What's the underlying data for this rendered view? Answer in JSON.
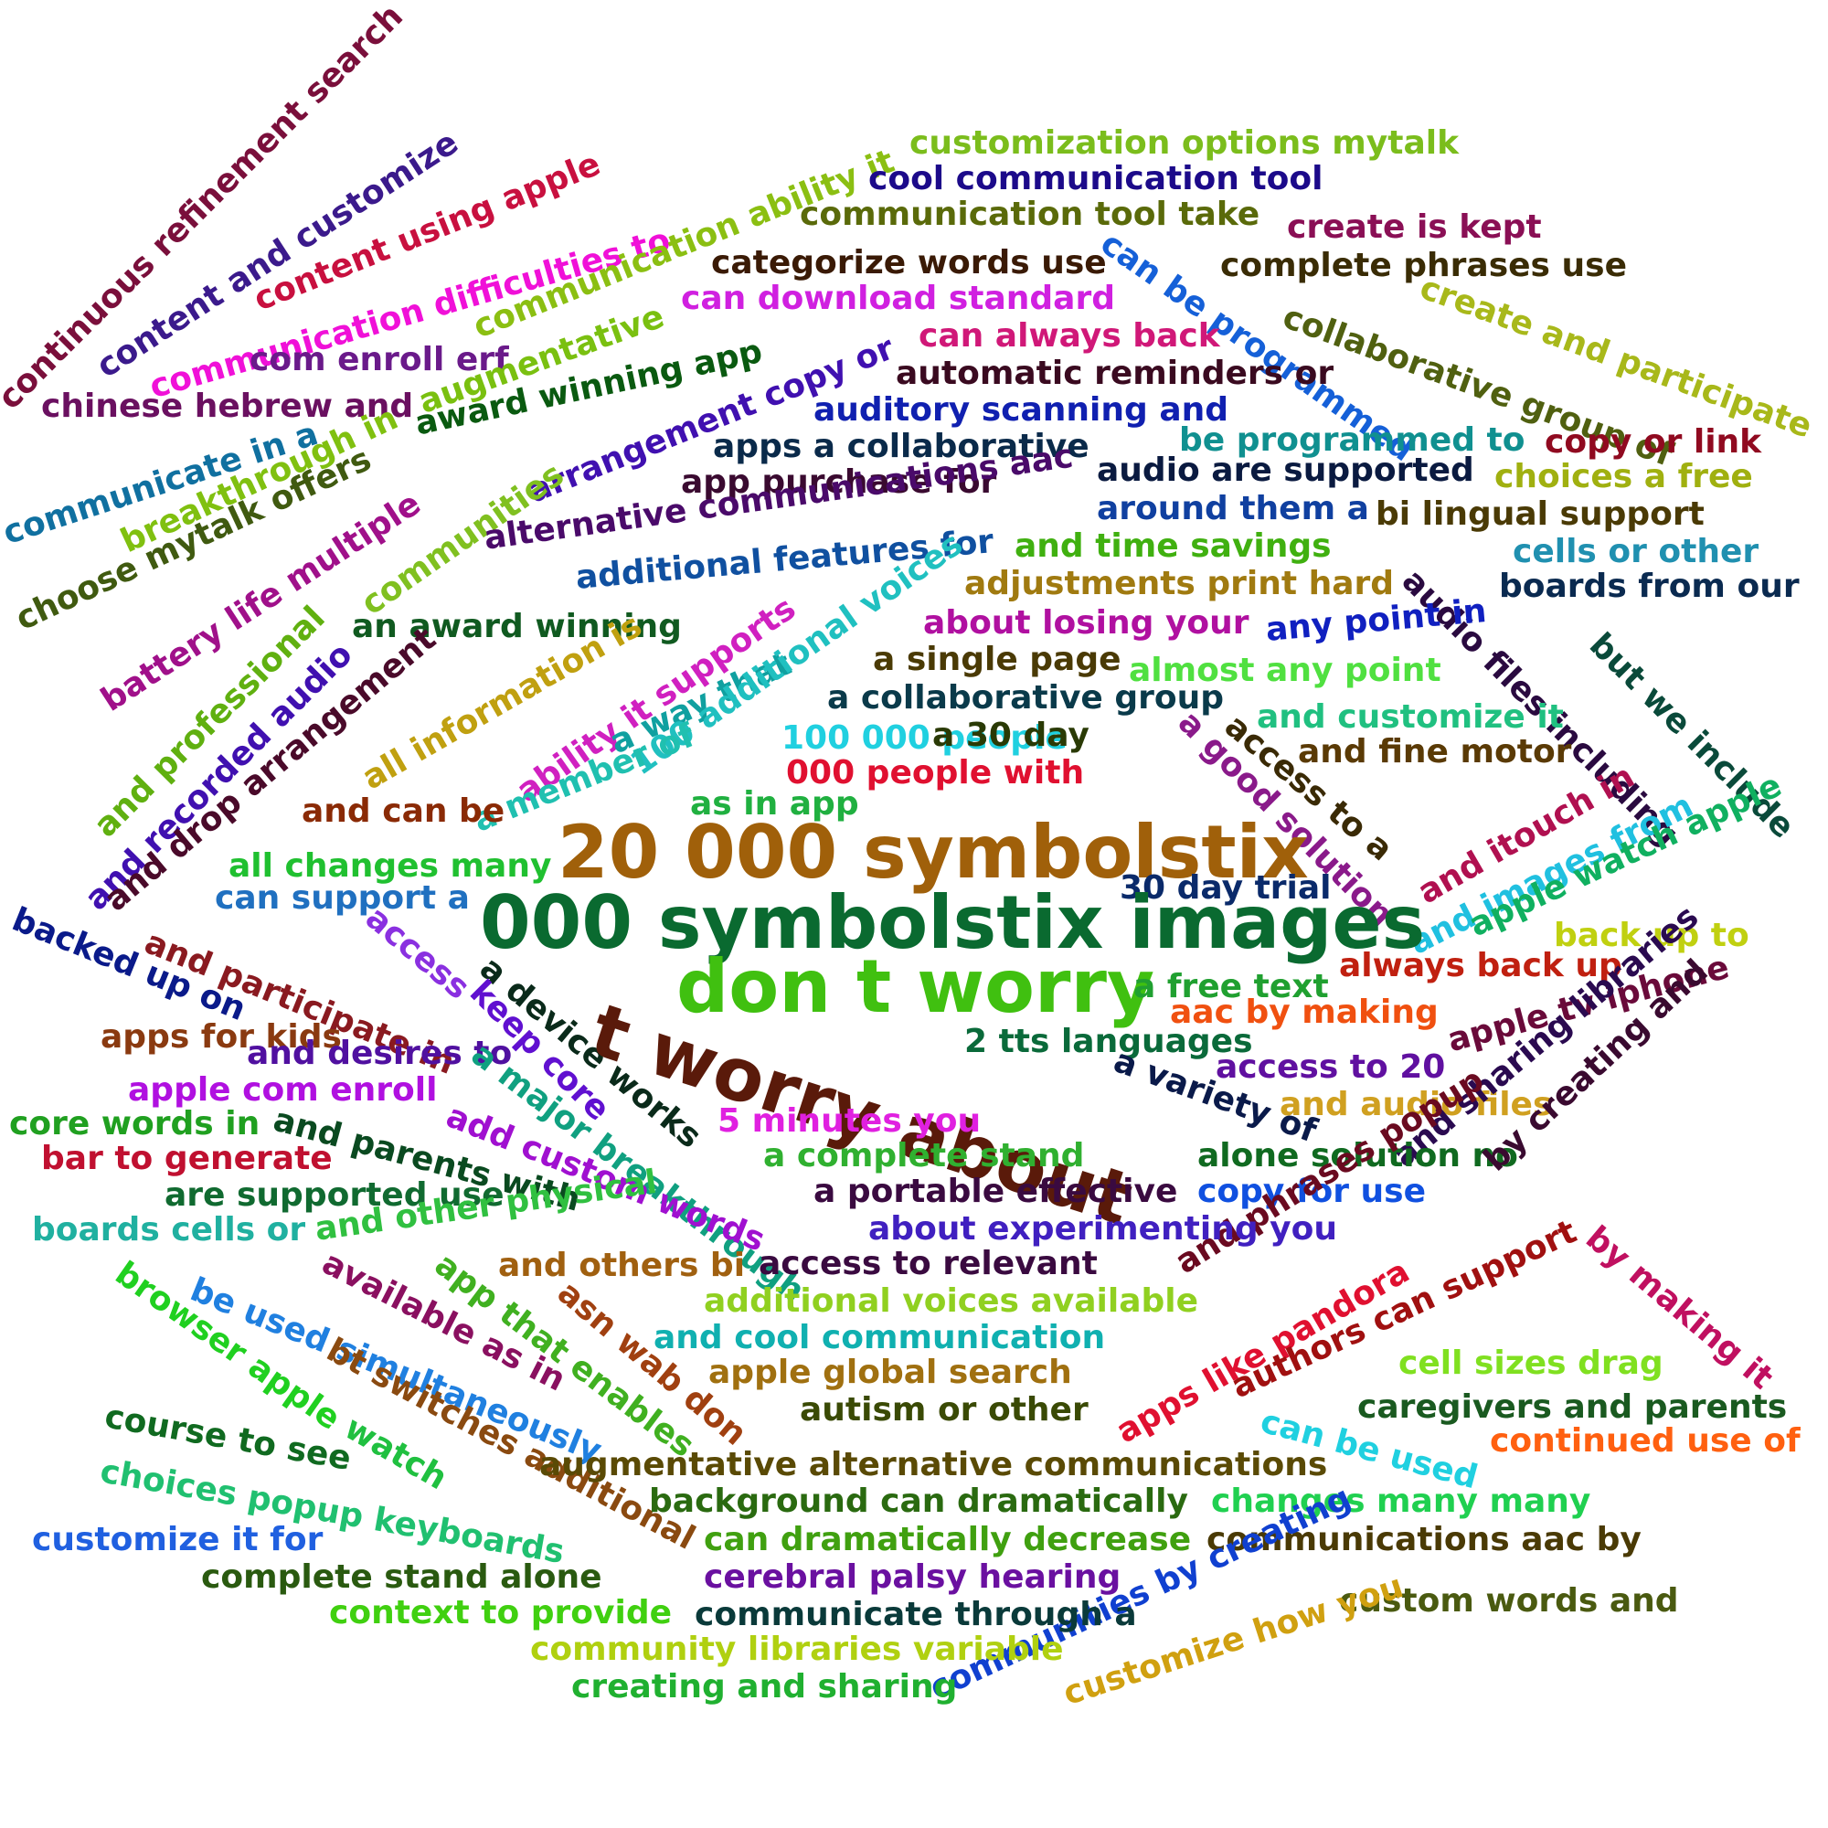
{
  "words": [
    {
      "text": "continuous refinement search",
      "color": "#7a0f3b"
    },
    {
      "text": "content and customize",
      "color": "#3b1a8c"
    },
    {
      "text": "content using apple",
      "color": "#c8103f"
    },
    {
      "text": "communication difficulties to",
      "color": "#f010d8"
    },
    {
      "text": "communication ability it",
      "color": "#8bbf12"
    },
    {
      "text": "customization options mytalk",
      "color": "#7bbd1c"
    },
    {
      "text": "cool communication tool",
      "color": "#1c0a8a"
    },
    {
      "text": "communication tool take",
      "color": "#5a6a0a"
    },
    {
      "text": "create is kept",
      "color": "#8a0f55"
    },
    {
      "text": "categorize words use",
      "color": "#3a1a05"
    },
    {
      "text": "can be programmed",
      "color": "#1560d8"
    },
    {
      "text": "complete phrases use",
      "color": "#3a2c05"
    },
    {
      "text": "create and participate",
      "color": "#a8b81a"
    },
    {
      "text": "collaborative group of",
      "color": "#506010"
    },
    {
      "text": "can download standard",
      "color": "#d020e0"
    },
    {
      "text": "can always back",
      "color": "#d01878"
    },
    {
      "text": "com enroll erf",
      "color": "#6a1a8a"
    },
    {
      "text": "augmentative",
      "color": "#7ac010"
    },
    {
      "text": "chinese hebrew and",
      "color": "#6a1060"
    },
    {
      "text": "award winning app",
      "color": "#0a5a10"
    },
    {
      "text": "arrangement copy or",
      "color": "#4010b0"
    },
    {
      "text": "automatic reminders or",
      "color": "#3a0a20"
    },
    {
      "text": "auditory scanning and",
      "color": "#1020b0"
    },
    {
      "text": "be programmed to",
      "color": "#109090"
    },
    {
      "text": "copy or link",
      "color": "#900a20"
    },
    {
      "text": "communicate in a",
      "color": "#1070a0"
    },
    {
      "text": "breakthrough in",
      "color": "#80c010"
    },
    {
      "text": "apps a collaborative",
      "color": "#0a2a4a"
    },
    {
      "text": "app purchase for",
      "color": "#3a0a30"
    },
    {
      "text": "audio are supported",
      "color": "#0a1a40"
    },
    {
      "text": "choices a free",
      "color": "#a0b010"
    },
    {
      "text": "choose mytalk offers",
      "color": "#405a10"
    },
    {
      "text": "communities",
      "color": "#80c020"
    },
    {
      "text": "battery life multiple",
      "color": "#a0108a"
    },
    {
      "text": "alternative communications aac",
      "color": "#4a0a6a"
    },
    {
      "text": "around them a",
      "color": "#1040a0"
    },
    {
      "text": "bi lingual support",
      "color": "#4a3a05"
    },
    {
      "text": "audio files including",
      "color": "#2a0a40"
    },
    {
      "text": "cells or other",
      "color": "#2090b0"
    },
    {
      "text": "additional features for",
      "color": "#1050a0"
    },
    {
      "text": "and time savings",
      "color": "#40b010"
    },
    {
      "text": "boards from our",
      "color": "#0a2a50"
    },
    {
      "text": "adjustments print hard",
      "color": "#a07a10"
    },
    {
      "text": "but we include",
      "color": "#0a4a3a"
    },
    {
      "text": "and professional",
      "color": "#60b010"
    },
    {
      "text": "an award winning",
      "color": "#105a20"
    },
    {
      "text": "about losing your",
      "color": "#b010a0"
    },
    {
      "text": "any point in",
      "color": "#1020c0"
    },
    {
      "text": "and recorded audio",
      "color": "#4010b0"
    },
    {
      "text": "and drop arrangement",
      "color": "#4a0a2a"
    },
    {
      "text": "all information is",
      "color": "#c0a010"
    },
    {
      "text": "ability it supports",
      "color": "#d020c0"
    },
    {
      "text": "a way that",
      "color": "#10a0a0"
    },
    {
      "text": "100 additional voices",
      "color": "#20c0c0"
    },
    {
      "text": "a single page",
      "color": "#4a3a05"
    },
    {
      "text": "almost any point",
      "color": "#50e040"
    },
    {
      "text": "a collaborative group",
      "color": "#0a3a4a"
    },
    {
      "text": "access to a",
      "color": "#3a2a05"
    },
    {
      "text": "a good solution",
      "color": "#8a1a8a"
    },
    {
      "text": "and customize it",
      "color": "#20c080"
    },
    {
      "text": "and fine motor",
      "color": "#5a3a05"
    },
    {
      "text": "a member of",
      "color": "#20c0b0"
    },
    {
      "text": "100 000 people",
      "color": "#20d0e0"
    },
    {
      "text": "a 30 day",
      "color": "#2a3a05"
    },
    {
      "text": "and can be",
      "color": "#8a2a05"
    },
    {
      "text": "000 people with",
      "color": "#e01030"
    },
    {
      "text": "as in app",
      "color": "#20b040"
    },
    {
      "text": "and itouch in",
      "color": "#b01050"
    },
    {
      "text": "and images from",
      "color": "#20c0e0"
    },
    {
      "text": "apple watch apple",
      "color": "#10b060"
    },
    {
      "text": "20 000 symbolstix",
      "color": "#a0600a"
    },
    {
      "text": "all changes many",
      "color": "#20c030"
    },
    {
      "text": "30 day trial",
      "color": "#0a2a6a"
    },
    {
      "text": "can support a",
      "color": "#2070c0"
    },
    {
      "text": "000 symbolstix images",
      "color": "#0a6a30"
    },
    {
      "text": "back up to",
      "color": "#c0d010"
    },
    {
      "text": "backed up on",
      "color": "#0a1a8a"
    },
    {
      "text": "access",
      "color": "#8a30e0"
    },
    {
      "text": "and participate in",
      "color": "#8a1a20"
    },
    {
      "text": "a device works",
      "color": "#0a2a1a"
    },
    {
      "text": "don t worry",
      "color": "#40c010"
    },
    {
      "text": "a free text",
      "color": "#20a030"
    },
    {
      "text": "always back up",
      "color": "#c02010"
    },
    {
      "text": "keep core",
      "color": "#6010d0"
    },
    {
      "text": "aac by making",
      "color": "#f05010"
    },
    {
      "text": "apple tv iphone",
      "color": "#6a0a3a"
    },
    {
      "text": "t worry about",
      "color": "#5a1a0a"
    },
    {
      "text": "apps for kids",
      "color": "#8a3a10"
    },
    {
      "text": "and desires to",
      "color": "#5010a0"
    },
    {
      "text": "2 tts languages",
      "color": "#0a6a3a"
    },
    {
      "text": "access to 20",
      "color": "#6010a0"
    },
    {
      "text": "a variety of",
      "color": "#0a1a4a"
    },
    {
      "text": "apple com enroll",
      "color": "#b010e0"
    },
    {
      "text": "a major breakthrough",
      "color": "#10a080"
    },
    {
      "text": "and audio files",
      "color": "#d0a020"
    },
    {
      "text": "and sharing libraries",
      "color": "#2a0a50"
    },
    {
      "text": "core words in",
      "color": "#20a020"
    },
    {
      "text": "and parents with",
      "color": "#0a4a20"
    },
    {
      "text": "add custom words",
      "color": "#a010d0"
    },
    {
      "text": "5 minutes you",
      "color": "#e020e0"
    },
    {
      "text": "a complete stand",
      "color": "#30b030"
    },
    {
      "text": "alone solution no",
      "color": "#106a20"
    },
    {
      "text": "by creating and",
      "color": "#3a0a30"
    },
    {
      "text": "bar to generate",
      "color": "#c01030"
    },
    {
      "text": "are supported use",
      "color": "#106a30"
    },
    {
      "text": "a portable effective",
      "color": "#3a0a40"
    },
    {
      "text": "copy for use",
      "color": "#1050e0"
    },
    {
      "text": "and phrases popup",
      "color": "#6a0a20"
    },
    {
      "text": "by making it",
      "color": "#c01060"
    },
    {
      "text": "boards cells or",
      "color": "#20b0a0"
    },
    {
      "text": "and other physical",
      "color": "#30c040"
    },
    {
      "text": "about experimenting you",
      "color": "#4020c0"
    },
    {
      "text": "and others bi",
      "color": "#a06010"
    },
    {
      "text": "access to relevant",
      "color": "#3a0a40"
    },
    {
      "text": "browser apple",
      "color": "#20d020"
    },
    {
      "text": "available as in",
      "color": "#8a1060"
    },
    {
      "text": "app that enables",
      "color": "#40b020"
    },
    {
      "text": "asn wab don",
      "color": "#a04010"
    },
    {
      "text": "additional voices available",
      "color": "#90d020"
    },
    {
      "text": "apps like pandora",
      "color": "#e01030"
    },
    {
      "text": "authors can support",
      "color": "#a01010"
    },
    {
      "text": "be used simultaneously",
      "color": "#2080e0"
    },
    {
      "text": "and cool communication",
      "color": "#10b0b0"
    },
    {
      "text": "bt switches additional",
      "color": "#8a4a10"
    },
    {
      "text": "apple global search",
      "color": "#a07010"
    },
    {
      "text": "cell sizes drag",
      "color": "#80e020"
    },
    {
      "text": "watch",
      "color": "#20c040"
    },
    {
      "text": "course to see",
      "color": "#106a20"
    },
    {
      "text": "autism or other",
      "color": "#3a4a05"
    },
    {
      "text": "caregivers and parents",
      "color": "#1a5a20"
    },
    {
      "text": "can be used",
      "color": "#20d0e0"
    },
    {
      "text": "continued use of",
      "color": "#ff6010"
    },
    {
      "text": "augmentative alternative communications",
      "color": "#5a4a05"
    },
    {
      "text": "choices popup keyboards",
      "color": "#20c070"
    },
    {
      "text": "background can dramatically",
      "color": "#2a6a10"
    },
    {
      "text": "changes many many",
      "color": "#20d050"
    },
    {
      "text": "customize it for",
      "color": "#2060e0"
    },
    {
      "text": "can dramatically decrease",
      "color": "#40a010"
    },
    {
      "text": "communications aac by",
      "color": "#4a3a05"
    },
    {
      "text": "complete stand alone",
      "color": "#2a5a10"
    },
    {
      "text": "cerebral palsy hearing",
      "color": "#6a10a0"
    },
    {
      "text": "communities by creating",
      "color": "#1040d0"
    },
    {
      "text": "context to provide",
      "color": "#40d010"
    },
    {
      "text": "communicate through a",
      "color": "#0a3a3a"
    },
    {
      "text": "custom words and",
      "color": "#4a5a10"
    },
    {
      "text": "community libraries variable",
      "color": "#b0d010"
    },
    {
      "text": "customize how you",
      "color": "#d0a010"
    },
    {
      "text": "creating and sharing",
      "color": "#20b030"
    }
  ]
}
